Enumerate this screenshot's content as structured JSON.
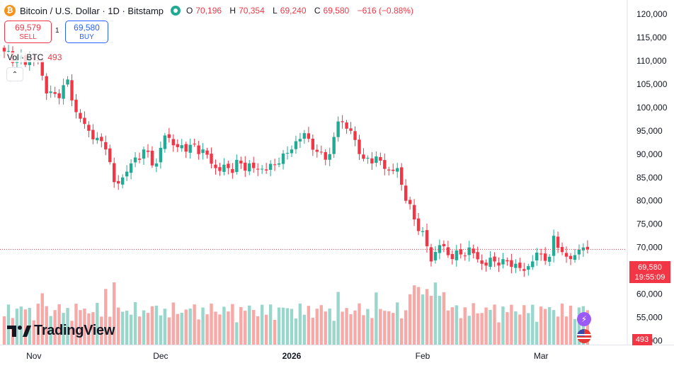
{
  "header": {
    "icon_letter": "₿",
    "symbol_title": "Bitcoin / U.S. Dollar · 1D · Bitstamp",
    "open_label": "O",
    "open": "70,196",
    "high_label": "H",
    "high": "70,354",
    "low_label": "L",
    "low": "69,240",
    "close_label": "C",
    "close": "69,580",
    "change": "−616 (−0.88%)"
  },
  "trade": {
    "sell_price": "69,579",
    "sell_label": "SELL",
    "qty": "1",
    "buy_price": "69,580",
    "buy_label": "BUY"
  },
  "volume_legend": {
    "label": "Vol · BTC",
    "value": "493"
  },
  "collapse_glyph": "⌃",
  "logo_text": "TradingView",
  "price_tag": {
    "price": "69,580",
    "countdown": "19:55:09"
  },
  "volume_tag": "493",
  "colors": {
    "up": "#22ab94",
    "down": "#f23645",
    "up_vol": "#99d6cc",
    "down_vol": "#f7a9a7"
  },
  "chart_data": {
    "type": "candlestick",
    "title": "Bitcoin / U.S. Dollar · 1D · Bitstamp",
    "y_ticks": [
      120000,
      115000,
      110000,
      105000,
      100000,
      95000,
      90000,
      85000,
      80000,
      75000,
      70000,
      65000,
      60000,
      55000,
      50000
    ],
    "y_tick_labels": [
      "120,000",
      "115,000",
      "110,000",
      "105,000",
      "100,000",
      "95,000",
      "90,000",
      "85,000",
      "80,000",
      "75,000",
      "70,000",
      "65,000",
      "60,000",
      "55,000",
      "50,000"
    ],
    "ylim": [
      50000,
      120000
    ],
    "x_labels": [
      {
        "label": "Nov",
        "index": 7
      },
      {
        "label": "Dec",
        "index": 37
      },
      {
        "label": "2026",
        "index": 68
      },
      {
        "label": "Feb",
        "index": 99
      },
      {
        "label": "Mar",
        "index": 127
      }
    ],
    "last_price": 69580,
    "keypoints": [
      [
        0,
        112000
      ],
      [
        3,
        110500
      ],
      [
        8,
        110000
      ],
      [
        10,
        103000
      ],
      [
        13,
        102000
      ],
      [
        15,
        106000
      ],
      [
        17,
        99000
      ],
      [
        20,
        95000
      ],
      [
        22,
        93500
      ],
      [
        24,
        91000
      ],
      [
        26,
        84000
      ],
      [
        28,
        85000
      ],
      [
        30,
        88000
      ],
      [
        33,
        91000
      ],
      [
        36,
        88000
      ],
      [
        38,
        94000
      ],
      [
        41,
        91500
      ],
      [
        44,
        92000
      ],
      [
        47,
        91000
      ],
      [
        50,
        87000
      ],
      [
        53,
        87000
      ],
      [
        56,
        88000
      ],
      [
        59,
        87000
      ],
      [
        62,
        86500
      ],
      [
        65,
        88000
      ],
      [
        68,
        91000
      ],
      [
        71,
        94500
      ],
      [
        74,
        90500
      ],
      [
        77,
        90000
      ],
      [
        79,
        97000
      ],
      [
        82,
        95000
      ],
      [
        85,
        89000
      ],
      [
        88,
        89500
      ],
      [
        91,
        86500
      ],
      [
        93,
        87000
      ],
      [
        95,
        80000
      ],
      [
        97,
        76000
      ],
      [
        99,
        73500
      ],
      [
        101,
        67000
      ],
      [
        103,
        70500
      ],
      [
        106,
        67500
      ],
      [
        108,
        68500
      ],
      [
        110,
        70000
      ],
      [
        113,
        66500
      ],
      [
        116,
        67000
      ],
      [
        118,
        67500
      ],
      [
        121,
        66500
      ],
      [
        123,
        65000
      ],
      [
        125,
        67000
      ],
      [
        127,
        68500
      ],
      [
        129,
        68000
      ],
      [
        130,
        72500
      ],
      [
        132,
        69000
      ],
      [
        134,
        67500
      ],
      [
        136,
        69500
      ],
      [
        137,
        70000
      ],
      [
        138,
        69580
      ]
    ],
    "volume": {
      "max_label": "",
      "last": 493
    }
  }
}
